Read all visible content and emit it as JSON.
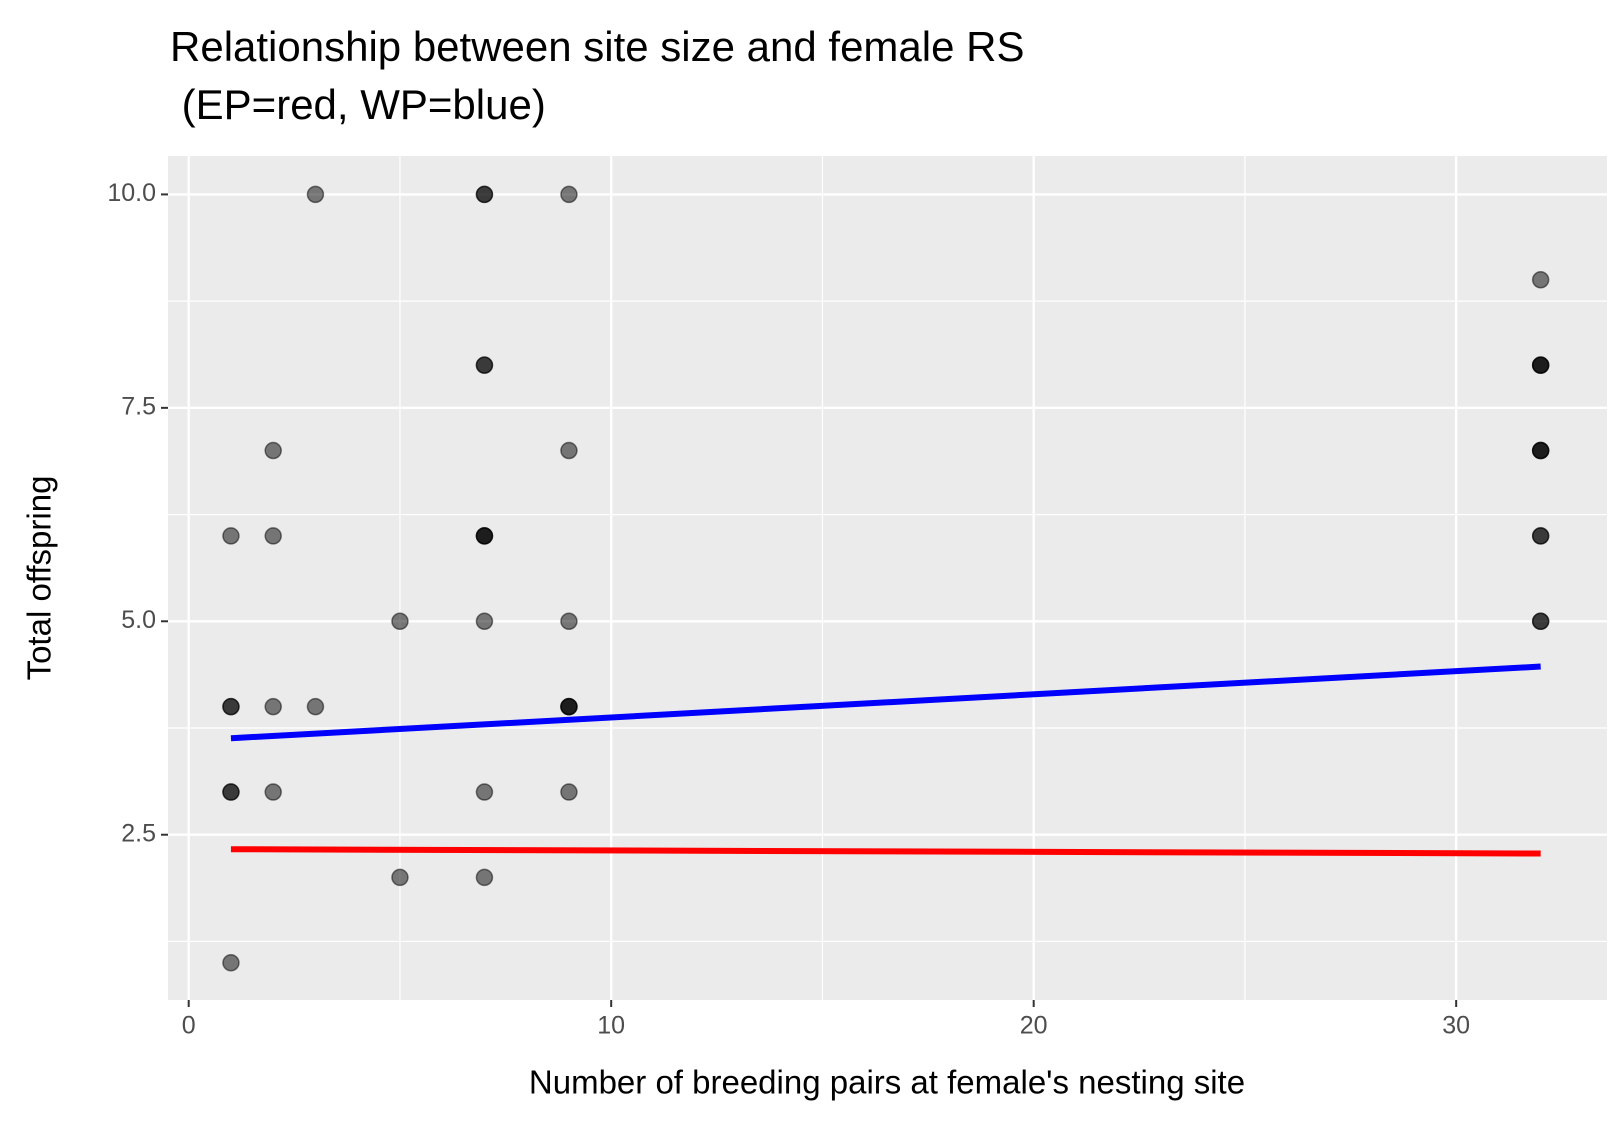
{
  "chart_data": {
    "type": "scatter",
    "title": [
      "Relationship between site size and female RS",
      " (EP=red, WP=blue)"
    ],
    "x_label": "Number of breeding pairs at female's nesting site",
    "y_label": "Total offspring",
    "points": {
      "color": "#000000",
      "opacity": 0.5,
      "x": [
        1,
        1,
        1,
        1,
        1,
        1,
        2,
        2,
        2,
        2,
        3,
        3,
        5,
        5,
        7,
        7,
        7,
        7,
        7,
        7,
        7,
        7,
        7,
        7,
        9,
        9,
        9,
        9,
        9,
        9,
        9,
        32,
        32,
        32,
        32,
        32,
        32,
        32,
        32,
        32,
        32,
        32
      ],
      "y": [
        6,
        4,
        4,
        3,
        3,
        1,
        7,
        6,
        4,
        3,
        10,
        4,
        5,
        2,
        10,
        10,
        8,
        8,
        6,
        6,
        6,
        5,
        3,
        2,
        10,
        7,
        5,
        4,
        4,
        4,
        3,
        9,
        8,
        8,
        8,
        7,
        7,
        7,
        6,
        6,
        5,
        5
      ]
    },
    "lines": [
      {
        "color": "#0000ff",
        "x": [
          1,
          32
        ],
        "values": [
          3.63,
          4.47
        ]
      },
      {
        "color": "#ff0000",
        "x": [
          1,
          32
        ],
        "values": [
          2.33,
          2.28
        ]
      }
    ],
    "xlim": [
      -0.49,
      33.57
    ],
    "ylim": [
      0.564,
      10.45
    ],
    "xticks": [
      0,
      10,
      20,
      30
    ],
    "yticks": [
      2.5,
      {
        "value": 5,
        "label": "5.0"
      },
      7.5,
      {
        "value": 10,
        "label": "10.0"
      }
    ],
    "x_minor_grid": [
      5,
      15,
      25
    ],
    "y_minor_grid": [
      1.25,
      3.75,
      6.25,
      8.75
    ],
    "grid": true,
    "panel_color": "#ebebeb"
  }
}
